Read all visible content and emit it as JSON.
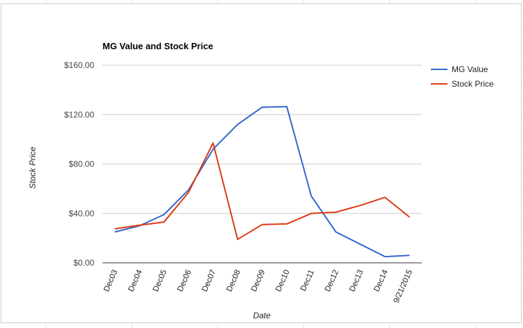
{
  "chart_data": {
    "type": "line",
    "title": "MG Value and Stock Price",
    "xlabel": "Date",
    "ylabel": "Stock Price",
    "categories": [
      "Dec03",
      "Dec04",
      "Dec05",
      "Dec06",
      "Dec07",
      "Dec08",
      "Dec09",
      "Dec10",
      "Dec11",
      "Dec12",
      "Dec13",
      "Dec14",
      "9/21/2015"
    ],
    "y_ticks": [
      "$0.00",
      "$40.00",
      "$80.00",
      "$120.00",
      "$160.00"
    ],
    "ylim": [
      0,
      160
    ],
    "grid": true,
    "legend_position": "right",
    "series": [
      {
        "name": "MG Value",
        "color": "#3366cc",
        "values": [
          25,
          30,
          39,
          59,
          92,
          112,
          126,
          126.5,
          54,
          25,
          15,
          5,
          6
        ]
      },
      {
        "name": "Stock Price",
        "color": "#dc3912",
        "values": [
          27.5,
          30.5,
          33,
          57,
          97,
          19,
          31,
          31.5,
          40,
          41,
          46.5,
          53,
          37
        ]
      }
    ]
  }
}
